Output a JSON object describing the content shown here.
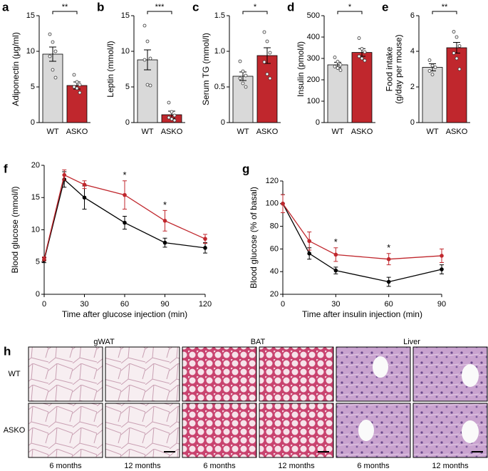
{
  "chart_data": [
    {
      "type": "bar",
      "panel": "a",
      "ylabel": [
        "Adiponectin (μg/ml)"
      ],
      "categories": [
        "WT",
        "ASKO"
      ],
      "values": [
        9.6,
        5.2
      ],
      "errors": [
        1.0,
        0.5
      ],
      "colors": [
        "#d9d9d9",
        "#c0272d"
      ],
      "points": [
        [
          12.4,
          11.3,
          10.0,
          9.3,
          7.4,
          6.3
        ],
        [
          6.7,
          5.7,
          5.3,
          5.0,
          4.8,
          4.2
        ]
      ],
      "ylim": [
        0,
        15
      ],
      "yticks": [
        0,
        5,
        10,
        15
      ],
      "significance": "**"
    },
    {
      "type": "bar",
      "panel": "b",
      "ylabel": [
        "Leptin (mmol/l)"
      ],
      "categories": [
        "WT",
        "ASKO"
      ],
      "values": [
        8.8,
        1.1
      ],
      "errors": [
        1.4,
        0.5
      ],
      "colors": [
        "#d9d9d9",
        "#c0272d"
      ],
      "points": [
        [
          13.6,
          11.4,
          9.0,
          8.8,
          5.3,
          5.2
        ],
        [
          2.8,
          1.5,
          1.0,
          0.7,
          0.5,
          0.3
        ]
      ],
      "ylim": [
        0,
        15
      ],
      "yticks": [
        0,
        5,
        10,
        15
      ],
      "significance": "***"
    },
    {
      "type": "bar",
      "panel": "c",
      "ylabel": [
        "Serum TG (mmol/l)"
      ],
      "categories": [
        "WT",
        "ASKO"
      ],
      "values": [
        0.65,
        0.94
      ],
      "errors": [
        0.06,
        0.11
      ],
      "colors": [
        "#d9d9d9",
        "#c0272d"
      ],
      "points": [
        [
          0.86,
          0.72,
          0.66,
          0.62,
          0.55,
          0.5
        ],
        [
          1.27,
          1.14,
          0.98,
          0.85,
          0.68,
          0.62
        ]
      ],
      "ylim": [
        0,
        1.5
      ],
      "yticks": [
        0,
        0.5,
        {
          "value": 1,
          "label": "1.0"
        },
        1.5
      ],
      "significance": "*"
    },
    {
      "type": "bar",
      "panel": "d",
      "ylabel": [
        "Insulin (pmol/l)"
      ],
      "categories": [
        "WT",
        "ASKO"
      ],
      "values": [
        270,
        328
      ],
      "errors": [
        12,
        18
      ],
      "colors": [
        "#d9d9d9",
        "#c0272d"
      ],
      "points": [
        [
          305,
          285,
          270,
          262,
          255,
          245
        ],
        [
          395,
          345,
          330,
          310,
          300,
          290
        ]
      ],
      "ylim": [
        0,
        500
      ],
      "yticks": [
        0,
        100,
        200,
        300,
        400,
        500
      ],
      "significance": "*"
    },
    {
      "type": "bar",
      "panel": "e",
      "ylabel": [
        "Food intake",
        "(g/day per mouse)"
      ],
      "categories": [
        "WT",
        "ASKO"
      ],
      "values": [
        3.1,
        4.2
      ],
      "errors": [
        0.2,
        0.3
      ],
      "colors": [
        "#d9d9d9",
        "#c0272d"
      ],
      "points": [
        [
          3.5,
          3.2,
          3.1,
          2.9,
          2.7
        ],
        [
          5.1,
          4.8,
          4.3,
          3.9,
          3.6,
          3.0
        ]
      ],
      "ylim": [
        0,
        6
      ],
      "yticks": [
        0,
        2,
        4,
        6
      ],
      "significance": "**"
    },
    {
      "type": "line",
      "panel": "f",
      "ylabel": [
        "Blood glucose (mmol/l)"
      ],
      "xlabel": "Time after glucose injection (min)",
      "x": [
        0,
        15,
        30,
        60,
        90,
        120
      ],
      "xlim": [
        0,
        120
      ],
      "xticks": [
        0,
        30,
        60,
        90,
        120
      ],
      "ylim": [
        0,
        20
      ],
      "yticks": [
        0,
        5,
        10,
        15,
        20
      ],
      "series": [
        {
          "color": "#000000",
          "values": [
            5.3,
            17.8,
            15.0,
            11.1,
            8.0,
            7.2
          ],
          "errors": [
            0.4,
            1.2,
            1.8,
            1.0,
            0.7,
            0.8
          ]
        },
        {
          "color": "#c0272d",
          "values": [
            5.5,
            18.5,
            17.0,
            15.4,
            11.4,
            8.6
          ],
          "errors": [
            0.3,
            0.8,
            0.6,
            2.2,
            1.6,
            0.7
          ]
        }
      ],
      "annotations": [
        {
          "x": 60,
          "text": "*"
        },
        {
          "x": 90,
          "text": "*"
        }
      ]
    },
    {
      "type": "line",
      "panel": "g",
      "ylabel": [
        "Blood glucose (% of basal)"
      ],
      "xlabel": "Time after insulin injection (min)",
      "x": [
        0,
        15,
        30,
        60,
        90
      ],
      "xlim": [
        0,
        90
      ],
      "xticks": [
        0,
        30,
        60,
        90
      ],
      "ylim": [
        20,
        120
      ],
      "yticks": [
        20,
        40,
        60,
        80,
        100,
        120
      ],
      "series": [
        {
          "color": "#000000",
          "values": [
            100,
            56,
            41,
            31,
            42
          ],
          "errors": [
            8,
            5,
            3,
            4,
            4
          ]
        },
        {
          "color": "#c0272d",
          "values": [
            100,
            67,
            55,
            51,
            54
          ],
          "errors": [
            8,
            8,
            6,
            5,
            6
          ]
        }
      ],
      "annotations": [
        {
          "x": 30,
          "text": "*"
        },
        {
          "x": 60,
          "text": "*"
        }
      ]
    }
  ],
  "histology": {
    "panel": "h",
    "groups": [
      "gWAT",
      "BAT",
      "Liver"
    ],
    "rows": [
      "WT",
      "ASKO"
    ],
    "columns": [
      "6 months",
      "12 months",
      "6 months",
      "12 months",
      "6 months",
      "12 months"
    ]
  }
}
